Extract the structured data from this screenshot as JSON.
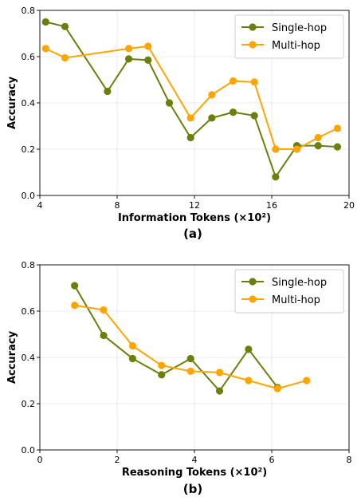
{
  "colors": {
    "single_hop": "#6b7f0b",
    "multi_hop": "#ffa500",
    "grid": "#e6e6e6",
    "axis": "#000000"
  },
  "chart_data": [
    {
      "type": "line",
      "panel_label": "(a)",
      "xlabel": "Information Tokens (×10²)",
      "ylabel": "Accuracy",
      "xlim": [
        4,
        20
      ],
      "ylim": [
        0,
        0.8
      ],
      "xticks": [
        4,
        8,
        12,
        16,
        20
      ],
      "xtick_labels": [
        "4",
        "8",
        "12",
        "16",
        "20"
      ],
      "yticks": [
        0,
        0.2,
        0.4,
        0.6,
        0.8
      ],
      "ytick_labels": [
        "0.0",
        "0.2",
        "0.4",
        "0.6",
        "0.8"
      ],
      "grid": true,
      "legend": "top-right",
      "series": [
        {
          "name": "Single-hop",
          "color_key": "single_hop",
          "x": [
            4.3,
            5.3,
            7.5,
            8.6,
            9.6,
            10.7,
            11.8,
            12.9,
            14.0,
            15.1,
            16.2,
            17.3,
            18.4,
            19.4
          ],
          "y": [
            0.75,
            0.73,
            0.45,
            0.59,
            0.585,
            0.4,
            0.25,
            0.335,
            0.36,
            0.345,
            0.08,
            0.215,
            0.215,
            0.21
          ]
        },
        {
          "name": "Multi-hop",
          "color_key": "multi_hop",
          "x": [
            4.3,
            5.3,
            8.6,
            9.6,
            11.8,
            12.9,
            14.0,
            15.1,
            16.2,
            17.3,
            18.4,
            19.4
          ],
          "y": [
            0.635,
            0.595,
            0.635,
            0.645,
            0.335,
            0.435,
            0.495,
            0.49,
            0.2,
            0.2,
            0.25,
            0.29
          ]
        }
      ]
    },
    {
      "type": "line",
      "panel_label": "(b)",
      "xlabel": "Reasoning Tokens (×10²)",
      "ylabel": "Accuracy",
      "xlim": [
        0,
        8
      ],
      "ylim": [
        0,
        0.8
      ],
      "xticks": [
        0,
        2,
        4,
        6,
        8
      ],
      "xtick_labels": [
        "0",
        "2",
        "4",
        "6",
        "8"
      ],
      "yticks": [
        0,
        0.2,
        0.4,
        0.6,
        0.8
      ],
      "ytick_labels": [
        "0.0",
        "0.2",
        "0.4",
        "0.6",
        "0.8"
      ],
      "grid": true,
      "legend": "top-right",
      "series": [
        {
          "name": "Single-hop",
          "color_key": "single_hop",
          "x": [
            0.9,
            1.65,
            2.4,
            3.15,
            3.9,
            4.65,
            5.4,
            6.15
          ],
          "y": [
            0.71,
            0.495,
            0.395,
            0.325,
            0.395,
            0.255,
            0.435,
            0.27
          ]
        },
        {
          "name": "Multi-hop",
          "color_key": "multi_hop",
          "x": [
            0.9,
            1.65,
            2.4,
            3.15,
            3.9,
            4.65,
            5.4,
            6.15,
            6.9
          ],
          "y": [
            0.625,
            0.605,
            0.45,
            0.365,
            0.34,
            0.335,
            0.3,
            0.265,
            0.3
          ]
        }
      ]
    }
  ]
}
